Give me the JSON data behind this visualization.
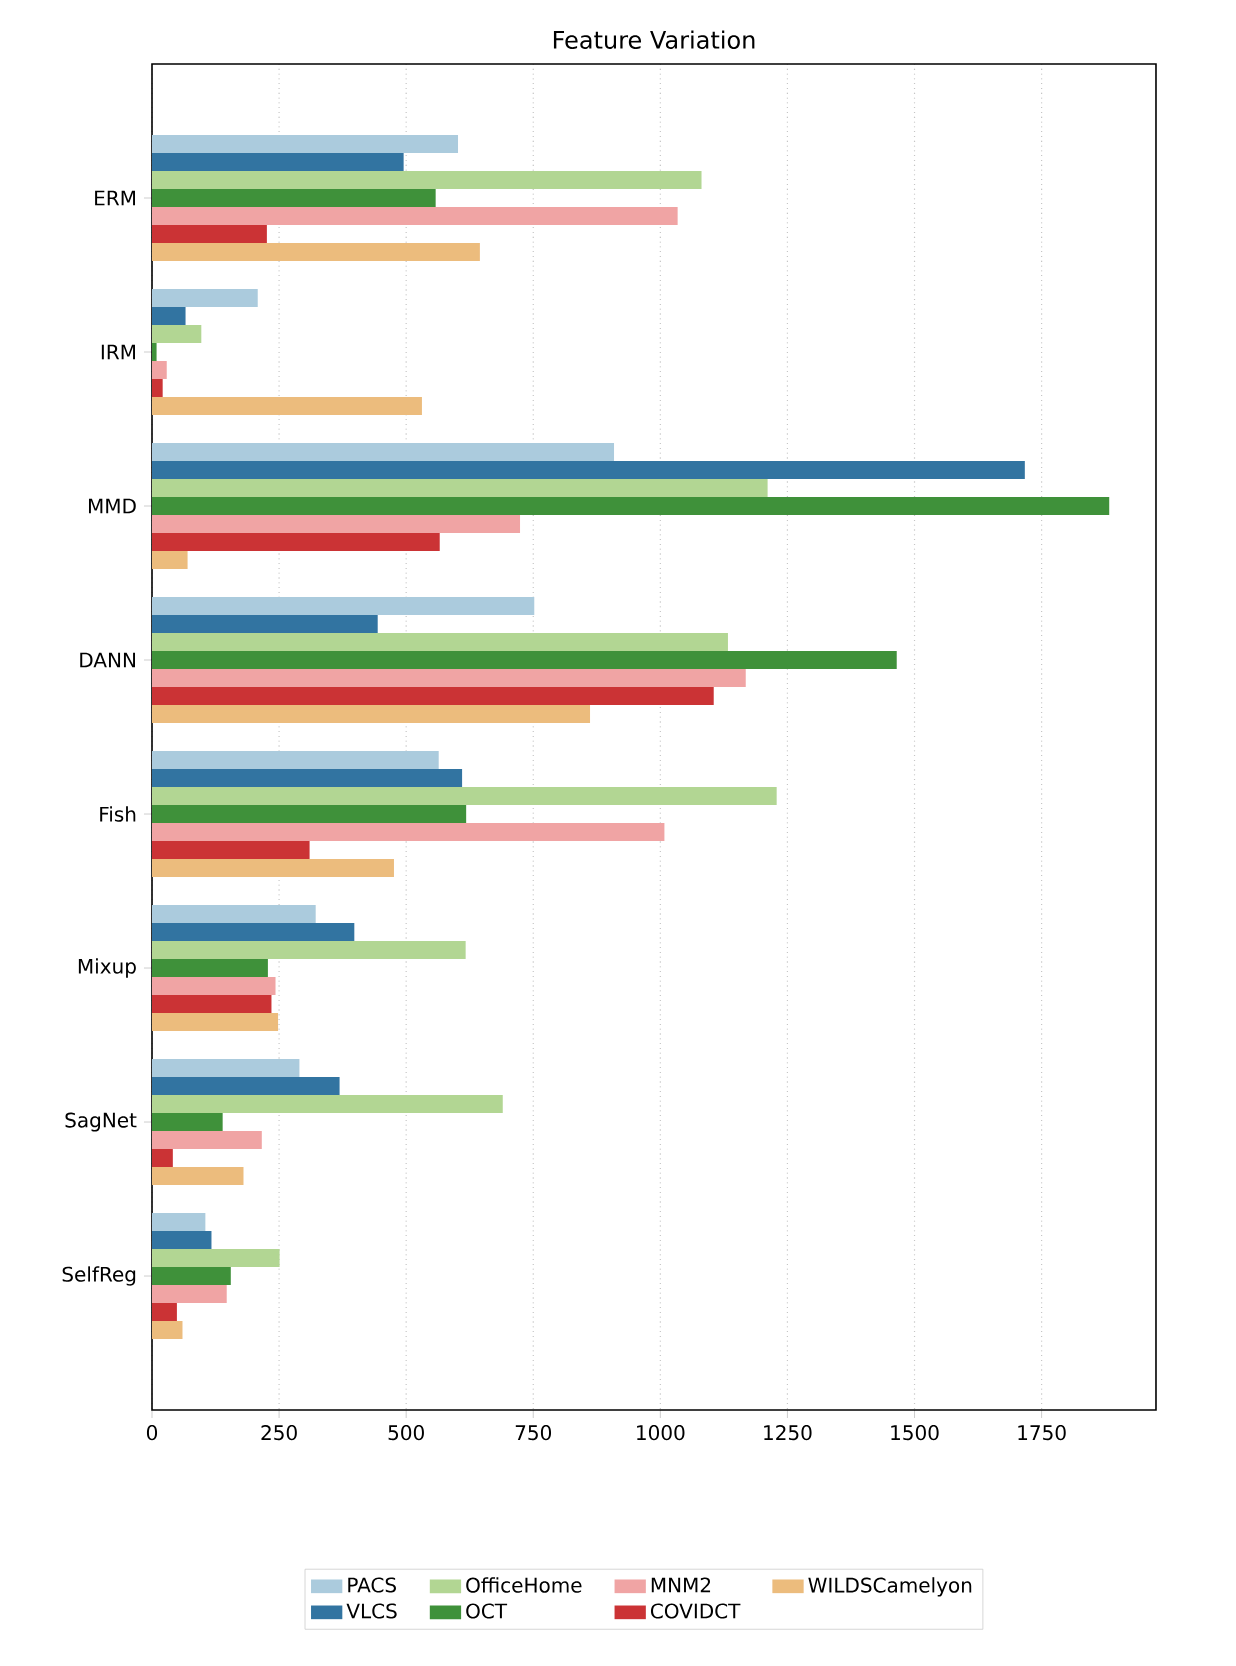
{
  "chart_data": {
    "type": "bar",
    "orientation": "horizontal",
    "title": "Feature Variation",
    "categories": [
      "ERM",
      "IRM",
      "MMD",
      "DANN",
      "Fish",
      "Mixup",
      "SagNet",
      "SelfReg"
    ],
    "series": [
      {
        "name": "PACS",
        "color": "#abcbdd",
        "values": [
          602,
          208,
          909,
          752,
          564,
          322,
          290,
          105
        ]
      },
      {
        "name": "VLCS",
        "color": "#3274a1",
        "values": [
          495,
          66,
          1717,
          444,
          610,
          398,
          369,
          117
        ]
      },
      {
        "name": "OfficeHome",
        "color": "#b2d693",
        "values": [
          1081,
          97,
          1211,
          1133,
          1229,
          617,
          690,
          251
        ]
      },
      {
        "name": "OCT",
        "color": "#3f913a",
        "values": [
          558,
          9,
          1883,
          1465,
          618,
          228,
          139,
          155
        ]
      },
      {
        "name": "MNM2",
        "color": "#f0a4a4",
        "values": [
          1034,
          29,
          724,
          1168,
          1008,
          243,
          216,
          147
        ]
      },
      {
        "name": "COVIDCT",
        "color": "#cb3335",
        "values": [
          226,
          21,
          566,
          1105,
          310,
          235,
          41,
          49
        ]
      },
      {
        "name": "WILDSCamelyon",
        "color": "#ecbc7d",
        "values": [
          645,
          531,
          70,
          862,
          476,
          248,
          180,
          60
        ]
      }
    ],
    "xlim": [
      0,
      1975
    ],
    "xticks": [
      0,
      250,
      500,
      750,
      1000,
      1250,
      1500,
      1750
    ],
    "grid": "x",
    "legend": "bottom"
  }
}
